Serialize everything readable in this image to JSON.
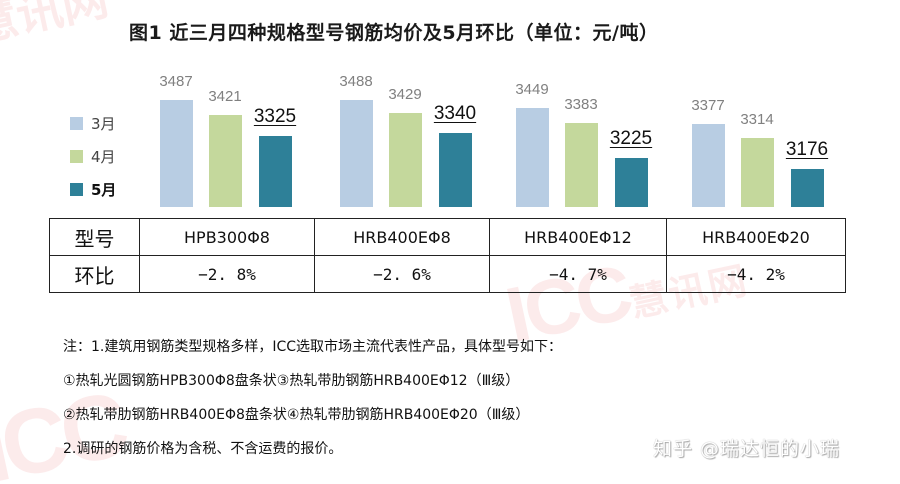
{
  "title": "图1 近三月四种规格型号钢筋均价及5月环比（单位：元/吨）",
  "watermark": {
    "brand": "ICC",
    "brand_cn": "慧讯网"
  },
  "colors": {
    "march": "#b8cde3",
    "april": "#c4d89c",
    "may": "#2e8098"
  },
  "legend": [
    {
      "label": "3月",
      "color": "#b8cde3",
      "bold": false
    },
    {
      "label": "4月",
      "color": "#c4d89c",
      "bold": false
    },
    {
      "label": "5月",
      "color": "#2e8098",
      "bold": true
    }
  ],
  "chart_data": {
    "type": "bar",
    "title": "图1 近三月四种规格型号钢筋均价及5月环比（单位：元/吨）",
    "categories": [
      "HPB300Φ8",
      "HRB400EΦ8",
      "HRB400EΦ12",
      "HRB400EΦ20"
    ],
    "series": [
      {
        "name": "3月",
        "values": [
          3487,
          3488,
          3449,
          3377
        ]
      },
      {
        "name": "4月",
        "values": [
          3421,
          3429,
          3383,
          3314
        ]
      },
      {
        "name": "5月",
        "values": [
          3325,
          3340,
          3225,
          3176
        ]
      }
    ],
    "xlabel": "",
    "ylabel": "元/吨",
    "legend_position": "left",
    "grid": false,
    "mom_change": [
      "-2.8%",
      "-2.6%",
      "-4.7%",
      "-4.2%"
    ]
  },
  "table": {
    "row1_header": "型号",
    "row2_header": "环比",
    "models": [
      "HPB300Φ8",
      "HRB400EΦ8",
      "HRB400EΦ12",
      "HRB400EΦ20"
    ],
    "changes": [
      "−2. 8%",
      "−2. 6%",
      "−4. 7%",
      "−4. 2%"
    ]
  },
  "notes": [
    "注：1.建筑用钢筋类型规格多样，ICC选取市场主流代表性产品，具体型号如下：",
    "①热轧光圆钢筋HPB300Φ8盘条状③热轧带肋钢筋HRB400EΦ12（Ⅲ级）",
    "②热轧带肋钢筋HRB400EΦ8盘条状④热轧带肋钢筋HRB400EΦ20（Ⅲ级）",
    "2.调研的钢筋价格为含税、不含运费的报价。"
  ],
  "credit": "知乎 @瑞达恒的小瑞"
}
